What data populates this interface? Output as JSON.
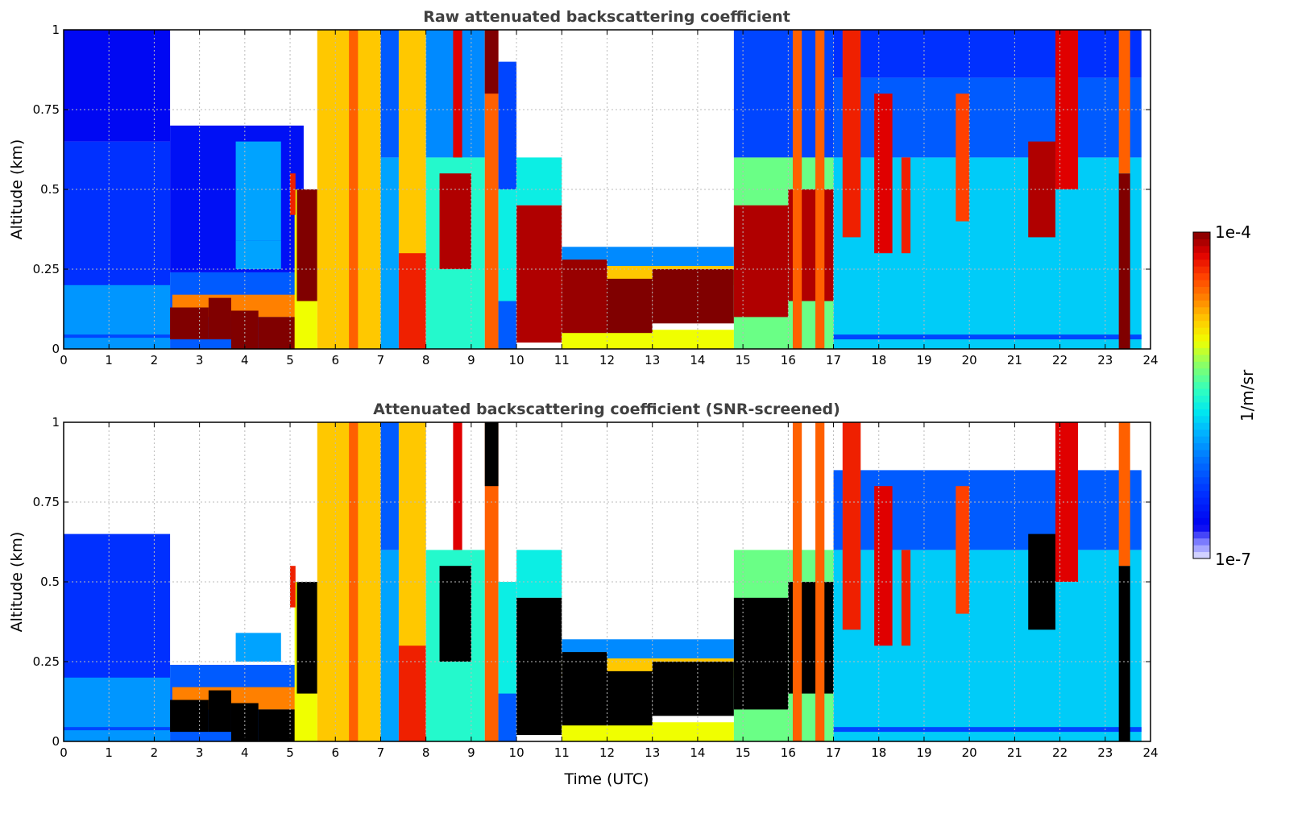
{
  "chart_data": {
    "type": "heatmap",
    "xlabel": "Time (UTC)",
    "ylabel": "Altitude (km)",
    "xlim": [
      0,
      24
    ],
    "ylim": [
      0,
      1
    ],
    "xticks": [
      0,
      1,
      2,
      3,
      4,
      5,
      6,
      7,
      8,
      9,
      10,
      11,
      12,
      13,
      14,
      15,
      16,
      17,
      18,
      19,
      20,
      21,
      22,
      23,
      24
    ],
    "yticks": [
      0,
      0.25,
      0.5,
      0.75,
      1
    ],
    "ytick_labels": [
      "0",
      "0.25",
      "0.5",
      "0.75",
      "1"
    ],
    "grid": true,
    "colorbar": {
      "label": "1/m/sr",
      "scale": "log10",
      "range_log10": [
        -7,
        -4
      ],
      "max_label": "1e-4",
      "min_label": "1e-7",
      "colormap_stops": [
        [
          -7.0,
          "#e6e6ff"
        ],
        [
          -6.85,
          "#8080ff"
        ],
        [
          -6.7,
          "#0000f0"
        ],
        [
          -6.4,
          "#0030ff"
        ],
        [
          -6.1,
          "#0070ff"
        ],
        [
          -5.85,
          "#00b0ff"
        ],
        [
          -5.65,
          "#00e8f0"
        ],
        [
          -5.45,
          "#30ffc0"
        ],
        [
          -5.2,
          "#90ff60"
        ],
        [
          -5.0,
          "#f0ff00"
        ],
        [
          -4.8,
          "#ffc800"
        ],
        [
          -4.6,
          "#ff8000"
        ],
        [
          -4.4,
          "#ff4000"
        ],
        [
          -4.2,
          "#e00000"
        ],
        [
          -4.0,
          "#800000"
        ]
      ]
    },
    "panels": [
      {
        "title": "Raw attenuated backscattering coefficient",
        "screened": false
      },
      {
        "title": "Attenuated backscattering coefficient (SNR-screened)",
        "screened": true,
        "saturation_threshold_log10": -4.1,
        "saturation_color": "#000000"
      }
    ],
    "cells_note": "time_start_h, time_end_h, alt_start_km, alt_end_km, log10_beta, removed_by_snr_screen",
    "cells": [
      [
        0,
        2.35,
        0,
        0.65,
        -6.4,
        false
      ],
      [
        0,
        2.35,
        0.65,
        1.0,
        -6.65,
        true
      ],
      [
        0,
        2.35,
        0,
        0.2,
        -5.95,
        false
      ],
      [
        0,
        2.35,
        0.035,
        0.045,
        -6.3,
        false
      ],
      [
        2.35,
        5.3,
        0,
        0.24,
        -6.2,
        false
      ],
      [
        2.35,
        5.3,
        0.24,
        0.7,
        -6.6,
        true
      ],
      [
        3.8,
        4.8,
        0.25,
        0.34,
        -5.9,
        false
      ],
      [
        3.8,
        4.8,
        0.34,
        0.65,
        -5.9,
        true
      ],
      [
        2.4,
        5.2,
        0.1,
        0.17,
        -4.6,
        false
      ],
      [
        2.35,
        3.2,
        0.03,
        0.13,
        -4.0,
        false
      ],
      [
        3.2,
        3.7,
        0.03,
        0.16,
        -4.0,
        false
      ],
      [
        3.7,
        4.3,
        0,
        0.12,
        -4.0,
        false
      ],
      [
        4.3,
        5.2,
        0,
        0.1,
        -4.0,
        false
      ],
      [
        5.1,
        5.6,
        0,
        0.5,
        -5.0,
        false
      ],
      [
        5.15,
        5.6,
        0.15,
        0.5,
        -4.0,
        false
      ],
      [
        5.0,
        5.12,
        0.42,
        0.55,
        -4.3,
        false
      ],
      [
        5.6,
        7.0,
        0,
        1.0,
        -4.8,
        false
      ],
      [
        6.3,
        6.5,
        0,
        1.0,
        -4.5,
        false
      ],
      [
        7.0,
        7.4,
        0,
        0.6,
        -5.9,
        false
      ],
      [
        7.0,
        7.4,
        0.6,
        1.0,
        -6.2,
        false
      ],
      [
        7.4,
        8.0,
        0,
        1.0,
        -4.8,
        false
      ],
      [
        7.4,
        8.0,
        0,
        0.3,
        -4.3,
        false
      ],
      [
        8.0,
        9.3,
        0,
        0.6,
        -5.5,
        false
      ],
      [
        8.0,
        9.3,
        0.6,
        1.0,
        -6.0,
        true
      ],
      [
        8.3,
        9.0,
        0.25,
        0.55,
        -4.1,
        false
      ],
      [
        8.6,
        8.8,
        0.6,
        1.0,
        -4.2,
        false
      ],
      [
        9.3,
        9.6,
        0,
        1.0,
        -4.5,
        false
      ],
      [
        9.3,
        9.6,
        0.8,
        1.0,
        -4.0,
        false
      ],
      [
        9.6,
        10.0,
        0,
        0.5,
        -5.6,
        false
      ],
      [
        9.6,
        10.0,
        0,
        0.15,
        -6.2,
        false
      ],
      [
        9.6,
        10.0,
        0.5,
        0.9,
        -6.3,
        true
      ],
      [
        10.0,
        11.0,
        0.45,
        0.6,
        -5.6,
        false
      ],
      [
        10.0,
        11.0,
        0.02,
        0.45,
        -4.1,
        false
      ],
      [
        11.0,
        14.8,
        0.22,
        0.32,
        -6.0,
        false
      ],
      [
        11.0,
        14.8,
        0,
        0.06,
        -5.0,
        false
      ],
      [
        11.0,
        14.8,
        0.2,
        0.26,
        -4.8,
        false
      ],
      [
        11.0,
        12.0,
        0.05,
        0.28,
        -4.05,
        false
      ],
      [
        12.0,
        13.0,
        0.05,
        0.22,
        -4.0,
        false
      ],
      [
        13.0,
        14.8,
        0.08,
        0.25,
        -4.0,
        false
      ],
      [
        14.8,
        17.0,
        0,
        0.6,
        -5.3,
        false
      ],
      [
        14.8,
        17.0,
        0.6,
        1.0,
        -6.3,
        true
      ],
      [
        14.8,
        16.0,
        0.1,
        0.45,
        -4.1,
        false
      ],
      [
        16.0,
        17.0,
        0.15,
        0.5,
        -4.1,
        false
      ],
      [
        16.1,
        16.3,
        0,
        1.0,
        -4.5,
        false
      ],
      [
        16.6,
        16.8,
        0,
        1.0,
        -4.5,
        false
      ],
      [
        17.0,
        23.8,
        0,
        0.6,
        -5.75,
        false
      ],
      [
        17.0,
        23.8,
        0.6,
        0.85,
        -6.2,
        false
      ],
      [
        17.0,
        23.8,
        0.85,
        1.0,
        -6.4,
        true
      ],
      [
        17.0,
        23.8,
        0.03,
        0.045,
        -6.3,
        false
      ],
      [
        17.2,
        17.6,
        0.35,
        1.0,
        -4.3,
        false
      ],
      [
        17.9,
        18.3,
        0.3,
        0.8,
        -4.2,
        false
      ],
      [
        18.5,
        18.7,
        0.3,
        0.6,
        -4.3,
        false
      ],
      [
        19.7,
        20.0,
        0.4,
        0.8,
        -4.4,
        false
      ],
      [
        21.3,
        21.9,
        0.35,
        0.65,
        -4.1,
        false
      ],
      [
        21.9,
        22.4,
        0.5,
        1.0,
        -4.2,
        false
      ],
      [
        23.3,
        23.55,
        0,
        0.55,
        -4.0,
        false
      ],
      [
        23.3,
        23.55,
        0.55,
        1.0,
        -4.5,
        false
      ]
    ]
  }
}
